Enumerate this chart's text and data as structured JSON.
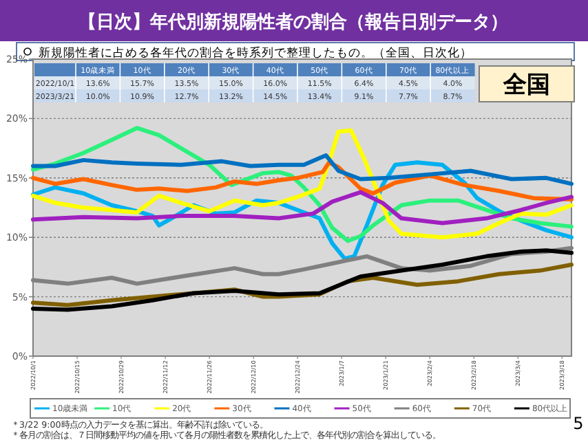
{
  "chart_data": {
    "type": "line",
    "title": "【日次】年代別新規陽性者の割合（報告日別データ）",
    "subtitle": "新規陽性者に占める各年代の割合を時系列で整理したもの。（全国、日次化）",
    "annotations": [
      "全国",
      "2022/10/1",
      "2023/3/21",
      "＊3/22 9:00時点の入力データを基に算出。年齢不詳は除いている。",
      "＊各月の割合は、７日間移動平均の値を用いて各月の陽性者数を累積化した上で、各年代別の割合を算出している。",
      "5",
      "13.6%",
      "15.7%",
      "13.5%",
      "15.0%",
      "16.0%",
      "11.5%",
      "6.4%",
      "4.5%",
      "4.0%",
      "10.0%",
      "10.9%",
      "12.7%",
      "13.2%",
      "14.5%",
      "13.4%",
      "9.1%",
      "7.7%",
      "8.7%"
    ],
    "xlim": [
      "2022-10-01",
      "2023-03-21"
    ],
    "ylim": [
      0,
      25
    ],
    "yticks": [
      {
        "value": 0,
        "label": "0%"
      },
      {
        "value": 5,
        "label": "5%"
      },
      {
        "value": 10,
        "label": "10%"
      },
      {
        "value": 15,
        "label": "15%"
      },
      {
        "value": 20,
        "label": "20%"
      },
      {
        "value": 25,
        "label": "25%"
      }
    ],
    "xticks": [
      {
        "value": "2022-10-01",
        "label": "2022/10/1"
      },
      {
        "value": "2022-10-15",
        "label": "2022/10/15"
      },
      {
        "value": "2022-10-29",
        "label": "2022/10/29"
      },
      {
        "value": "2022-11-12",
        "label": "2022/11/12"
      },
      {
        "value": "2022-11-26",
        "label": "2022/11/26"
      },
      {
        "value": "2022-12-10",
        "label": "2022/12/10"
      },
      {
        "value": "2022-12-24",
        "label": "2022/12/24"
      },
      {
        "value": "2023-01-07",
        "label": "2023/1/7"
      },
      {
        "value": "2023-01-21",
        "label": "2023/1/21"
      },
      {
        "value": "2023-02-04",
        "label": "2023/2/4"
      },
      {
        "value": "2023-02-18",
        "label": "2023/2/18"
      },
      {
        "value": "2023-03-04",
        "label": "2023/3/4"
      },
      {
        "value": "2023-03-18",
        "label": "2023/3/18"
      }
    ],
    "grid": "y",
    "legend": "bottom",
    "series": [
      {
        "name": "10歳未満",
        "color": "#00b0f0",
        "x": [
          "2022-10-01",
          "2022-10-08",
          "2022-10-17",
          "2022-10-26",
          "2022-11-03",
          "2022-11-08",
          "2022-11-10",
          "2022-11-14",
          "2022-11-21",
          "2022-11-28",
          "2022-12-04",
          "2022-12-11",
          "2022-12-18",
          "2022-12-24",
          "2022-12-31",
          "2023-01-04",
          "2023-01-08",
          "2023-01-11",
          "2023-01-15",
          "2023-01-20",
          "2023-01-24",
          "2023-01-31",
          "2023-02-08",
          "2023-02-15",
          "2023-02-19",
          "2023-02-26",
          "2023-03-05",
          "2023-03-13",
          "2023-03-21"
        ],
        "values": [
          13.6,
          14.2,
          13.7,
          12.7,
          12.2,
          11.8,
          11.0,
          11.6,
          12.7,
          12.0,
          12.1,
          13.1,
          12.9,
          12.3,
          11.6,
          9.5,
          8.2,
          8.4,
          11.0,
          14.4,
          16.1,
          16.3,
          16.1,
          14.6,
          13.3,
          12.2,
          11.4,
          10.6,
          10.0
        ]
      },
      {
        "name": "10代",
        "color": "#2cf07c",
        "x": [
          "2022-10-01",
          "2022-10-08",
          "2022-10-17",
          "2022-10-26",
          "2022-11-03",
          "2022-11-10",
          "2022-11-17",
          "2022-11-26",
          "2022-12-03",
          "2022-12-13",
          "2022-12-18",
          "2022-12-22",
          "2022-12-26",
          "2022-12-31",
          "2023-01-04",
          "2023-01-09",
          "2023-01-13",
          "2023-01-17",
          "2023-01-26",
          "2023-02-04",
          "2023-02-13",
          "2023-02-22",
          "2023-03-02",
          "2023-03-11",
          "2023-03-21"
        ],
        "values": [
          15.7,
          16.2,
          17.1,
          18.2,
          19.2,
          18.6,
          17.5,
          16.1,
          14.4,
          15.4,
          15.5,
          15.2,
          14.2,
          12.7,
          10.8,
          9.7,
          10.1,
          11.0,
          12.7,
          13.1,
          13.1,
          12.3,
          11.6,
          11.2,
          10.9
        ]
      },
      {
        "name": "20代",
        "color": "#ffff00",
        "x": [
          "2022-10-01",
          "2022-10-08",
          "2022-10-17",
          "2022-10-26",
          "2022-11-03",
          "2022-11-10",
          "2022-11-17",
          "2022-11-26",
          "2022-12-04",
          "2022-12-13",
          "2022-12-18",
          "2022-12-24",
          "2022-12-31",
          "2023-01-03",
          "2023-01-06",
          "2023-01-10",
          "2023-01-14",
          "2023-01-18",
          "2023-01-22",
          "2023-01-26",
          "2023-02-08",
          "2023-02-19",
          "2023-02-26",
          "2023-03-05",
          "2023-03-13",
          "2023-03-21"
        ],
        "values": [
          13.5,
          12.9,
          12.5,
          12.3,
          12.1,
          13.5,
          12.9,
          12.2,
          13.1,
          12.7,
          12.9,
          13.4,
          14.1,
          16.3,
          18.9,
          19.0,
          16.7,
          14.1,
          11.4,
          10.3,
          10.0,
          10.3,
          11.2,
          12.0,
          11.9,
          12.7
        ]
      },
      {
        "name": "30代",
        "color": "#ff6600",
        "x": [
          "2022-10-01",
          "2022-10-08",
          "2022-10-17",
          "2022-10-26",
          "2022-11-03",
          "2022-11-10",
          "2022-11-19",
          "2022-11-28",
          "2022-12-04",
          "2022-12-11",
          "2022-12-18",
          "2022-12-24",
          "2023-01-01",
          "2023-01-03",
          "2023-01-06",
          "2023-01-13",
          "2023-01-17",
          "2023-01-24",
          "2023-02-04",
          "2023-02-15",
          "2023-02-26",
          "2023-03-09",
          "2023-03-21"
        ],
        "values": [
          15.0,
          14.5,
          14.9,
          14.4,
          14.0,
          14.1,
          13.9,
          14.2,
          14.7,
          14.5,
          14.8,
          15.0,
          15.5,
          16.3,
          15.9,
          14.1,
          13.7,
          14.6,
          15.2,
          14.4,
          13.9,
          13.3,
          13.2
        ]
      },
      {
        "name": "40代",
        "color": "#0070c0",
        "x": [
          "2022-10-01",
          "2022-10-08",
          "2022-10-17",
          "2022-10-26",
          "2022-11-03",
          "2022-11-17",
          "2022-11-30",
          "2022-12-09",
          "2022-12-18",
          "2022-12-26",
          "2023-01-02",
          "2023-01-06",
          "2023-01-13",
          "2023-01-22",
          "2023-02-04",
          "2023-02-17",
          "2023-03-02",
          "2023-03-13",
          "2023-03-21"
        ],
        "values": [
          16.0,
          16.0,
          16.5,
          16.3,
          16.2,
          16.1,
          16.4,
          16.0,
          16.1,
          16.1,
          16.9,
          15.6,
          14.9,
          15.0,
          15.3,
          15.6,
          14.9,
          15.0,
          14.5
        ]
      },
      {
        "name": "50代",
        "color": "#a020c0",
        "x": [
          "2022-10-01",
          "2022-10-17",
          "2022-11-03",
          "2022-11-17",
          "2022-12-04",
          "2022-12-18",
          "2022-12-29",
          "2023-01-04",
          "2023-01-13",
          "2023-01-20",
          "2023-01-26",
          "2023-02-08",
          "2023-02-22",
          "2023-03-05",
          "2023-03-13",
          "2023-03-21"
        ],
        "values": [
          11.5,
          11.7,
          11.6,
          11.8,
          11.8,
          11.6,
          12.0,
          13.0,
          13.8,
          12.9,
          11.6,
          11.2,
          11.6,
          12.3,
          12.9,
          13.4
        ]
      },
      {
        "name": "60代",
        "color": "#808080",
        "x": [
          "2022-10-01",
          "2022-10-12",
          "2022-10-26",
          "2022-11-03",
          "2022-11-17",
          "2022-12-04",
          "2022-12-13",
          "2022-12-18",
          "2022-12-26",
          "2023-01-04",
          "2023-01-15",
          "2023-01-26",
          "2023-02-04",
          "2023-02-17",
          "2023-03-02",
          "2023-03-13",
          "2023-03-21"
        ],
        "values": [
          6.4,
          6.1,
          6.6,
          6.1,
          6.7,
          7.4,
          6.9,
          6.9,
          7.3,
          7.8,
          8.4,
          7.4,
          7.2,
          7.6,
          8.6,
          8.8,
          9.1
        ]
      },
      {
        "name": "70代",
        "color": "#806000",
        "x": [
          "2022-10-01",
          "2022-10-12",
          "2022-10-26",
          "2022-11-08",
          "2022-11-21",
          "2022-12-04",
          "2022-12-13",
          "2022-12-18",
          "2022-12-31",
          "2023-01-09",
          "2023-01-17",
          "2023-01-31",
          "2023-02-13",
          "2023-02-26",
          "2023-03-11",
          "2023-03-21"
        ],
        "values": [
          4.5,
          4.3,
          4.7,
          5.0,
          5.3,
          5.6,
          5.0,
          5.0,
          5.2,
          6.3,
          6.6,
          6.0,
          6.3,
          6.9,
          7.2,
          7.7
        ]
      },
      {
        "name": "80代以上",
        "color": "#000000",
        "x": [
          "2022-10-01",
          "2022-10-12",
          "2022-10-26",
          "2022-11-08",
          "2022-11-21",
          "2022-12-04",
          "2022-12-18",
          "2022-12-31",
          "2023-01-13",
          "2023-01-26",
          "2023-02-08",
          "2023-02-22",
          "2023-03-05",
          "2023-03-13",
          "2023-03-21"
        ],
        "values": [
          4.0,
          3.9,
          4.2,
          4.7,
          5.3,
          5.5,
          5.2,
          5.3,
          6.7,
          7.2,
          7.7,
          8.4,
          8.8,
          8.9,
          8.7
        ]
      }
    ]
  }
}
